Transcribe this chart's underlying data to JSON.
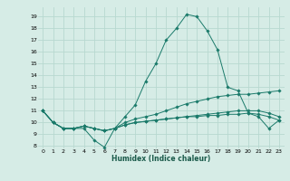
{
  "title": "",
  "xlabel": "Humidex (Indice chaleur)",
  "ylabel": "",
  "xlim": [
    -0.5,
    23.5
  ],
  "ylim": [
    7.8,
    19.8
  ],
  "yticks": [
    8,
    9,
    10,
    11,
    12,
    13,
    14,
    15,
    16,
    17,
    18,
    19
  ],
  "xticks": [
    0,
    1,
    2,
    3,
    4,
    5,
    6,
    7,
    8,
    9,
    10,
    11,
    12,
    13,
    14,
    15,
    16,
    17,
    18,
    19,
    20,
    21,
    22,
    23
  ],
  "bg_color": "#d6ece6",
  "grid_color": "#b8d8d0",
  "line_color": "#1a7a6a",
  "series": [
    [
      11,
      10,
      9.5,
      9.5,
      9.5,
      8.5,
      7.9,
      9.5,
      10.5,
      11.5,
      13.5,
      15,
      17,
      18,
      19.2,
      19.0,
      17.8,
      16.2,
      13.0,
      12.7,
      10.8,
      10.5,
      9.5,
      10.2
    ],
    [
      11,
      10,
      9.5,
      9.5,
      9.7,
      9.5,
      9.3,
      9.5,
      10.0,
      10.3,
      10.5,
      10.7,
      11.0,
      11.3,
      11.6,
      11.8,
      12.0,
      12.2,
      12.3,
      12.4,
      12.4,
      12.5,
      12.6,
      12.7
    ],
    [
      11,
      10,
      9.5,
      9.5,
      9.7,
      9.5,
      9.3,
      9.5,
      9.8,
      10.0,
      10.1,
      10.2,
      10.3,
      10.4,
      10.5,
      10.6,
      10.7,
      10.8,
      10.9,
      11.0,
      11.0,
      11.0,
      10.8,
      10.5
    ],
    [
      11,
      10,
      9.5,
      9.5,
      9.7,
      9.5,
      9.3,
      9.5,
      9.8,
      10.0,
      10.1,
      10.2,
      10.3,
      10.4,
      10.5,
      10.5,
      10.6,
      10.6,
      10.7,
      10.7,
      10.8,
      10.7,
      10.5,
      10.2
    ]
  ]
}
